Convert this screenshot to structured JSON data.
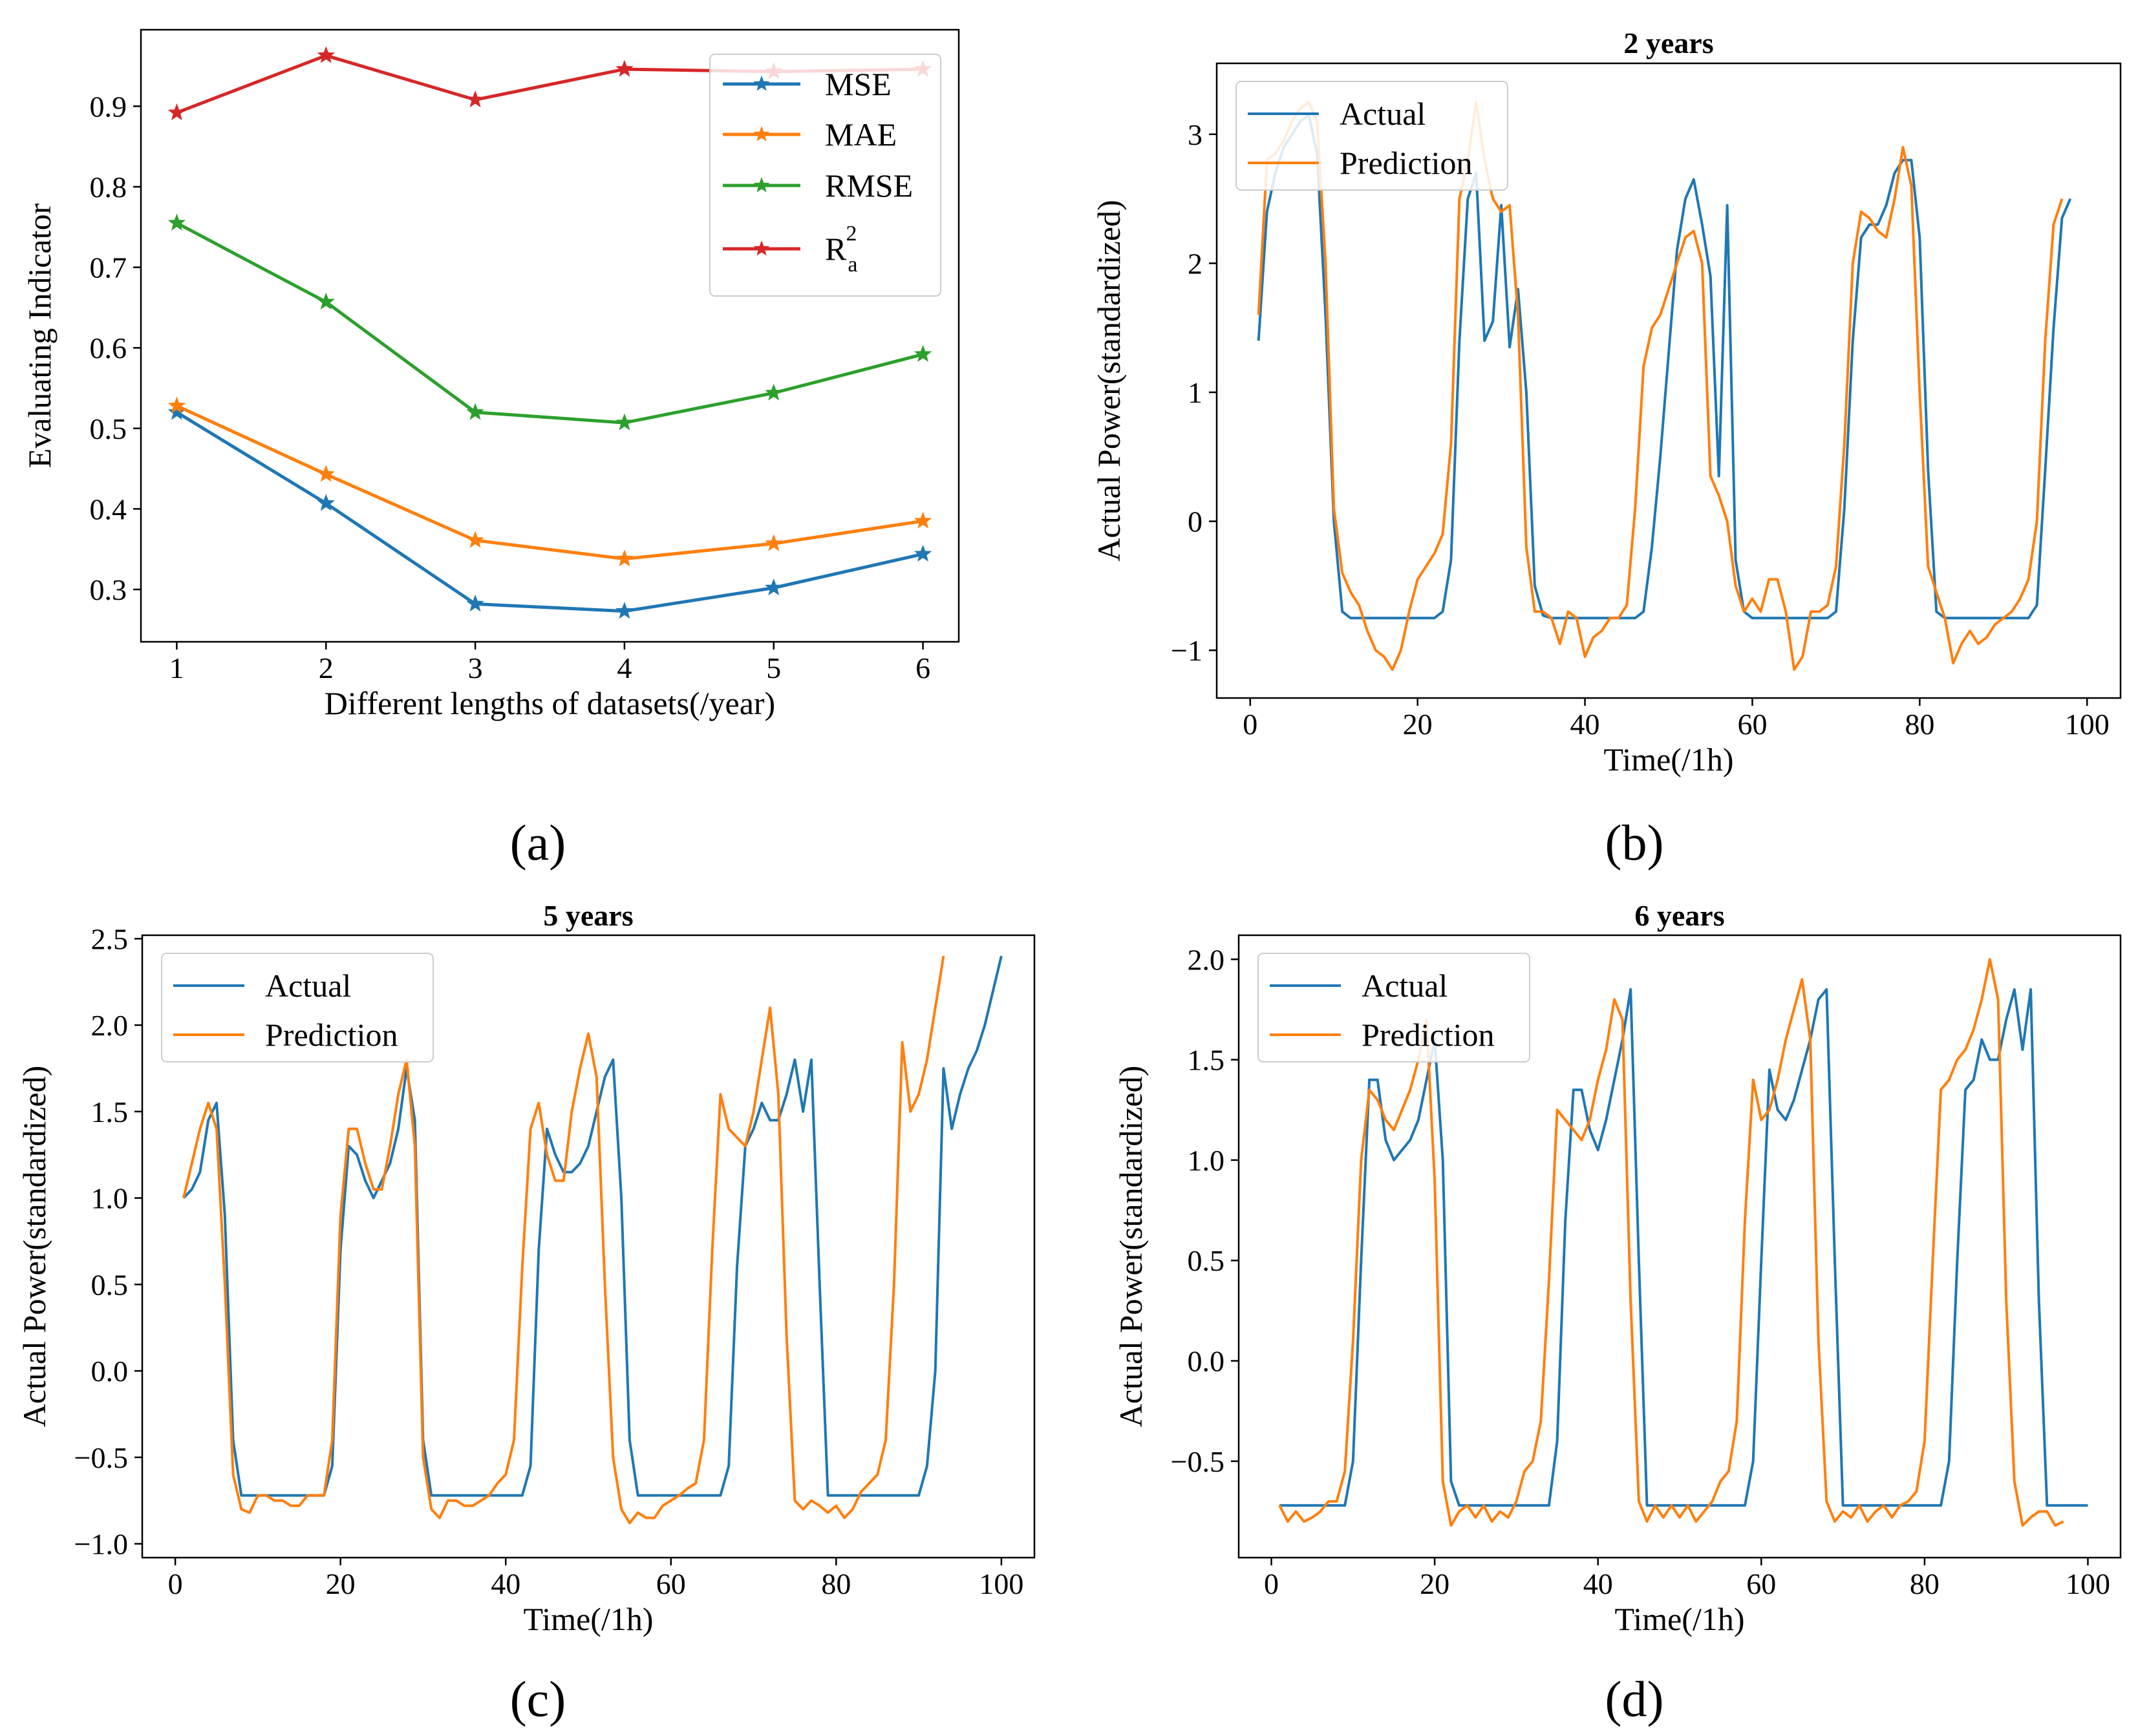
{
  "colors": {
    "mse": "#1f77b4",
    "mae": "#ff7f0e",
    "rmse": "#2ca02c",
    "r2": "#d62728",
    "actual": "#1f77b4",
    "prediction": "#ff7f0e",
    "axis": "#000000"
  },
  "chart_data": [
    {
      "id": "a",
      "type": "line",
      "caption": "(a)",
      "title": "",
      "xlabel": "Different lengths of datasets(/year)",
      "ylabel": "Evaluating Indicator",
      "xlim": [
        0.76,
        6.24
      ],
      "ylim": [
        0.235,
        0.995
      ],
      "xticks": [
        1,
        2,
        3,
        4,
        5,
        6
      ],
      "xtick_labels": [
        "1",
        "2",
        "3",
        "4",
        "5",
        "6"
      ],
      "yticks": [
        0.3,
        0.4,
        0.5,
        0.6,
        0.7,
        0.8,
        0.9
      ],
      "ytick_labels": [
        "0.3",
        "0.4",
        "0.5",
        "0.6",
        "0.7",
        "0.8",
        "0.9"
      ],
      "legend_position": "top-right",
      "x": [
        1,
        2,
        3,
        4,
        5,
        6
      ],
      "series": [
        {
          "name": "MSE",
          "legend_label": "MSE",
          "color": "#1f77b4",
          "marker": "star",
          "values": [
            0.52,
            0.407,
            0.282,
            0.273,
            0.302,
            0.344
          ]
        },
        {
          "name": "MAE",
          "legend_label": "MAE",
          "color": "#ff7f0e",
          "marker": "star",
          "values": [
            0.528,
            0.443,
            0.361,
            0.338,
            0.357,
            0.385
          ]
        },
        {
          "name": "RMSE",
          "legend_label": "RMSE",
          "color": "#2ca02c",
          "marker": "star",
          "values": [
            0.755,
            0.657,
            0.52,
            0.507,
            0.544,
            0.592
          ]
        },
        {
          "name": "R_a^2",
          "legend_label": "R",
          "legend_sub": "a",
          "legend_sup": "2",
          "color": "#d62728",
          "marker": "star",
          "values": [
            0.892,
            0.963,
            0.908,
            0.946,
            0.943,
            0.946
          ]
        }
      ]
    },
    {
      "id": "b",
      "type": "line",
      "caption": "(b)",
      "title": "2 years",
      "xlabel": "Time(/1h)",
      "ylabel": "Actual Power(standardized)",
      "xlim": [
        -4,
        104
      ],
      "ylim": [
        -1.37,
        3.55
      ],
      "xticks": [
        0,
        20,
        40,
        60,
        80,
        100
      ],
      "xtick_labels": [
        "0",
        "20",
        "40",
        "60",
        "80",
        "100"
      ],
      "yticks": [
        -1,
        0,
        1,
        2,
        3
      ],
      "ytick_labels": [
        "−1",
        "0",
        "1",
        "2",
        "3"
      ],
      "legend_position": "top-left",
      "series": [
        {
          "name": "Actual",
          "color": "#1f77b4",
          "values": [
            1.4,
            2.4,
            2.7,
            2.9,
            3.0,
            3.1,
            3.15,
            2.85,
            1.6,
            0.0,
            -0.7,
            -0.75,
            -0.75,
            -0.75,
            -0.75,
            -0.75,
            -0.75,
            -0.75,
            -0.75,
            -0.75,
            -0.75,
            -0.75,
            -0.7,
            -0.3,
            1.4,
            2.5,
            2.7,
            1.4,
            1.55,
            2.45,
            1.35,
            1.8,
            1.0,
            -0.5,
            -0.73,
            -0.75,
            -0.75,
            -0.75,
            -0.75,
            -0.75,
            -0.75,
            -0.75,
            -0.75,
            -0.75,
            -0.75,
            -0.75,
            -0.7,
            -0.2,
            0.5,
            1.3,
            2.1,
            2.5,
            2.65,
            2.3,
            1.9,
            0.35,
            2.45,
            -0.3,
            -0.7,
            -0.75,
            -0.75,
            -0.75,
            -0.75,
            -0.75,
            -0.75,
            -0.75,
            -0.75,
            -0.75,
            -0.75,
            -0.7,
            0.1,
            1.4,
            2.2,
            2.3,
            2.3,
            2.45,
            2.7,
            2.8,
            2.8,
            2.2,
            0.4,
            -0.7,
            -0.75,
            -0.75,
            -0.75,
            -0.75,
            -0.75,
            -0.75,
            -0.75,
            -0.75,
            -0.75,
            -0.75,
            -0.75,
            -0.65,
            0.4,
            1.5,
            2.35,
            2.5
          ]
        },
        {
          "name": "Prediction",
          "color": "#ff7f0e",
          "values": [
            1.6,
            2.8,
            2.85,
            2.95,
            3.1,
            3.2,
            3.25,
            3.1,
            2.0,
            0.1,
            -0.4,
            -0.55,
            -0.65,
            -0.85,
            -1.0,
            -1.05,
            -1.15,
            -1.0,
            -0.7,
            -0.45,
            -0.35,
            -0.25,
            -0.1,
            0.6,
            2.5,
            2.8,
            3.25,
            2.8,
            2.5,
            2.4,
            2.45,
            1.6,
            -0.2,
            -0.7,
            -0.7,
            -0.75,
            -0.95,
            -0.7,
            -0.75,
            -1.05,
            -0.9,
            -0.85,
            -0.75,
            -0.75,
            -0.65,
            0.1,
            1.2,
            1.5,
            1.6,
            1.8,
            2.0,
            2.2,
            2.25,
            2.0,
            0.35,
            0.2,
            0.0,
            -0.5,
            -0.7,
            -0.6,
            -0.7,
            -0.45,
            -0.45,
            -0.7,
            -1.15,
            -1.05,
            -0.7,
            -0.7,
            -0.65,
            -0.35,
            0.6,
            2.0,
            2.4,
            2.35,
            2.25,
            2.2,
            2.5,
            2.9,
            2.6,
            1.0,
            -0.35,
            -0.55,
            -0.75,
            -1.1,
            -0.95,
            -0.85,
            -0.95,
            -0.9,
            -0.8,
            -0.75,
            -0.7,
            -0.6,
            -0.45,
            0.0,
            1.4,
            2.3,
            2.5
          ]
        }
      ]
    },
    {
      "id": "c",
      "type": "line",
      "caption": "(c)",
      "title": "5 years",
      "xlabel": "Time(/1h)",
      "ylabel": "Actual Power(standardized)",
      "xlim": [
        -4,
        104
      ],
      "ylim": [
        -1.08,
        2.52
      ],
      "xticks": [
        0,
        20,
        40,
        60,
        80,
        100
      ],
      "xtick_labels": [
        "0",
        "20",
        "40",
        "60",
        "80",
        "100"
      ],
      "yticks": [
        -1.0,
        -0.5,
        0.0,
        0.5,
        1.0,
        1.5,
        2.0,
        2.5
      ],
      "ytick_labels": [
        "−1.0",
        "−0.5",
        "0.0",
        "0.5",
        "1.0",
        "1.5",
        "2.0",
        "2.5"
      ],
      "legend_position": "top-left",
      "series": [
        {
          "name": "Actual",
          "color": "#1f77b4",
          "values": [
            1.0,
            1.05,
            1.15,
            1.45,
            1.55,
            0.9,
            -0.4,
            -0.72,
            -0.72,
            -0.72,
            -0.72,
            -0.72,
            -0.72,
            -0.72,
            -0.72,
            -0.72,
            -0.72,
            -0.72,
            -0.55,
            0.7,
            1.3,
            1.25,
            1.1,
            1.0,
            1.1,
            1.2,
            1.4,
            1.75,
            1.45,
            -0.4,
            -0.72,
            -0.72,
            -0.72,
            -0.72,
            -0.72,
            -0.72,
            -0.72,
            -0.72,
            -0.72,
            -0.72,
            -0.72,
            -0.72,
            -0.55,
            0.7,
            1.4,
            1.25,
            1.15,
            1.15,
            1.2,
            1.3,
            1.5,
            1.7,
            1.8,
            1.0,
            -0.4,
            -0.72,
            -0.72,
            -0.72,
            -0.72,
            -0.72,
            -0.72,
            -0.72,
            -0.72,
            -0.72,
            -0.72,
            -0.72,
            -0.55,
            0.6,
            1.3,
            1.4,
            1.55,
            1.45,
            1.45,
            1.6,
            1.8,
            1.5,
            1.8,
            0.5,
            -0.72,
            -0.72,
            -0.72,
            -0.72,
            -0.72,
            -0.72,
            -0.72,
            -0.72,
            -0.72,
            -0.72,
            -0.72,
            -0.72,
            -0.55,
            0.0,
            1.75,
            1.4,
            1.6,
            1.75,
            1.85,
            2.0,
            2.2,
            2.4
          ]
        },
        {
          "name": "Prediction",
          "color": "#ff7f0e",
          "values": [
            1.0,
            1.2,
            1.4,
            1.55,
            1.4,
            0.5,
            -0.6,
            -0.8,
            -0.82,
            -0.72,
            -0.72,
            -0.75,
            -0.75,
            -0.78,
            -0.78,
            -0.72,
            -0.72,
            -0.72,
            -0.4,
            0.9,
            1.4,
            1.4,
            1.2,
            1.05,
            1.05,
            1.3,
            1.6,
            1.8,
            1.3,
            -0.5,
            -0.8,
            -0.85,
            -0.75,
            -0.75,
            -0.78,
            -0.78,
            -0.75,
            -0.72,
            -0.65,
            -0.6,
            -0.4,
            0.6,
            1.4,
            1.55,
            1.25,
            1.1,
            1.1,
            1.5,
            1.75,
            1.95,
            1.7,
            0.5,
            -0.5,
            -0.8,
            -0.88,
            -0.82,
            -0.85,
            -0.85,
            -0.78,
            -0.75,
            -0.72,
            -0.68,
            -0.65,
            -0.4,
            0.7,
            1.6,
            1.4,
            1.35,
            1.3,
            1.5,
            1.8,
            2.1,
            1.6,
            0.2,
            -0.75,
            -0.8,
            -0.75,
            -0.78,
            -0.82,
            -0.78,
            -0.85,
            -0.8,
            -0.7,
            -0.65,
            -0.6,
            -0.4,
            0.5,
            1.9,
            1.5,
            1.6,
            1.8,
            2.1,
            2.4
          ]
        }
      ]
    },
    {
      "id": "d",
      "type": "line",
      "caption": "(d)",
      "title": "6 years",
      "xlabel": "Time(/1h)",
      "ylabel": "Actual Power(standardized)",
      "xlim": [
        -4,
        104
      ],
      "ylim": [
        -0.98,
        2.12
      ],
      "xticks": [
        0,
        20,
        40,
        60,
        80,
        100
      ],
      "xtick_labels": [
        "0",
        "20",
        "40",
        "60",
        "80",
        "100"
      ],
      "yticks": [
        -0.5,
        0.0,
        0.5,
        1.0,
        1.5,
        2.0
      ],
      "ytick_labels": [
        "−0.5",
        "0.0",
        "0.5",
        "1.0",
        "1.5",
        "2.0"
      ],
      "legend_position": "top-left",
      "series": [
        {
          "name": "Actual",
          "color": "#1f77b4",
          "values": [
            -0.72,
            -0.72,
            -0.72,
            -0.72,
            -0.72,
            -0.72,
            -0.72,
            -0.72,
            -0.72,
            -0.5,
            0.5,
            1.4,
            1.4,
            1.1,
            1.0,
            1.05,
            1.1,
            1.2,
            1.4,
            1.6,
            1.0,
            -0.6,
            -0.72,
            -0.72,
            -0.72,
            -0.72,
            -0.72,
            -0.72,
            -0.72,
            -0.72,
            -0.72,
            -0.72,
            -0.72,
            -0.72,
            -0.4,
            0.7,
            1.35,
            1.35,
            1.15,
            1.05,
            1.2,
            1.4,
            1.6,
            1.85,
            0.5,
            -0.72,
            -0.72,
            -0.72,
            -0.72,
            -0.72,
            -0.72,
            -0.72,
            -0.72,
            -0.72,
            -0.72,
            -0.72,
            -0.72,
            -0.72,
            -0.5,
            0.5,
            1.45,
            1.25,
            1.2,
            1.3,
            1.45,
            1.6,
            1.8,
            1.85,
            0.5,
            -0.72,
            -0.72,
            -0.72,
            -0.72,
            -0.72,
            -0.72,
            -0.72,
            -0.72,
            -0.72,
            -0.72,
            -0.72,
            -0.72,
            -0.72,
            -0.5,
            0.5,
            1.35,
            1.4,
            1.6,
            1.5,
            1.5,
            1.7,
            1.85,
            1.55,
            1.85,
            0.3,
            -0.72,
            -0.72,
            -0.72,
            -0.72,
            -0.72,
            -0.72
          ]
        },
        {
          "name": "Prediction",
          "color": "#ff7f0e",
          "values": [
            -0.72,
            -0.8,
            -0.75,
            -0.8,
            -0.78,
            -0.75,
            -0.7,
            -0.7,
            -0.55,
            0.1,
            1.0,
            1.35,
            1.3,
            1.2,
            1.15,
            1.25,
            1.35,
            1.5,
            1.7,
            0.9,
            -0.6,
            -0.82,
            -0.75,
            -0.72,
            -0.78,
            -0.72,
            -0.8,
            -0.75,
            -0.78,
            -0.7,
            -0.55,
            -0.5,
            -0.3,
            0.4,
            1.25,
            1.2,
            1.15,
            1.1,
            1.2,
            1.4,
            1.55,
            1.8,
            1.7,
            0.3,
            -0.7,
            -0.8,
            -0.72,
            -0.78,
            -0.72,
            -0.78,
            -0.72,
            -0.8,
            -0.75,
            -0.7,
            -0.6,
            -0.55,
            -0.3,
            0.7,
            1.4,
            1.2,
            1.25,
            1.4,
            1.6,
            1.75,
            1.9,
            1.6,
            0.1,
            -0.7,
            -0.8,
            -0.75,
            -0.78,
            -0.72,
            -0.8,
            -0.75,
            -0.72,
            -0.78,
            -0.72,
            -0.7,
            -0.65,
            -0.4,
            0.5,
            1.35,
            1.4,
            1.5,
            1.55,
            1.65,
            1.8,
            2.0,
            1.8,
            0.3,
            -0.6,
            -0.82,
            -0.78,
            -0.75,
            -0.75,
            -0.82,
            -0.8
          ]
        }
      ]
    }
  ]
}
